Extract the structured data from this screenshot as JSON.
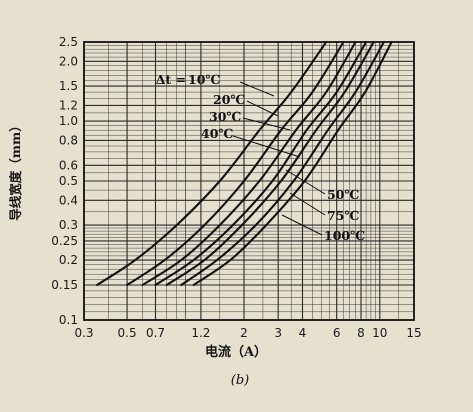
{
  "chart_data": {
    "type": "line",
    "xlabel": "电流（A）",
    "ylabel": "导线宽度（mm）",
    "subtitle": "(b)",
    "legend_prefix": "Δt =",
    "x_scale": "log",
    "y_scale": "log",
    "xlim": [
      0.3,
      15
    ],
    "ylim": [
      0.1,
      2.5
    ],
    "x_ticks": [
      "0.3",
      "0.5",
      "0.7",
      "1.2",
      "2",
      "3",
      "4",
      "6",
      "8",
      "10",
      "15"
    ],
    "x_tick_values": [
      0.3,
      0.5,
      0.7,
      1.2,
      2,
      3,
      4,
      6,
      8,
      10,
      15
    ],
    "y_ticks": [
      "2.5",
      "2.0",
      "1.5",
      "1.2",
      "1.0",
      "0.8",
      "0.6",
      "0.5",
      "0.4",
      "0.3",
      "0.25",
      "0.2",
      "0.15",
      "0.1"
    ],
    "y_tick_values": [
      2.5,
      2.0,
      1.5,
      1.2,
      1.0,
      0.8,
      0.6,
      0.5,
      0.4,
      0.3,
      0.25,
      0.2,
      0.15,
      0.1
    ],
    "grid": true,
    "series": [
      {
        "name": "10℃",
        "x": [
          0.35,
          0.55,
          0.9,
          1.5,
          2.4,
          3.5,
          5.3
        ],
        "y": [
          0.15,
          0.2,
          0.3,
          0.5,
          0.9,
          1.4,
          2.5
        ]
      },
      {
        "name": "20℃",
        "x": [
          0.5,
          0.78,
          1.25,
          2.0,
          3.1,
          4.5,
          6.5
        ],
        "y": [
          0.15,
          0.2,
          0.3,
          0.5,
          0.9,
          1.4,
          2.5
        ]
      },
      {
        "name": "30℃",
        "x": [
          0.6,
          0.95,
          1.5,
          2.4,
          3.7,
          5.3,
          7.5
        ],
        "y": [
          0.15,
          0.2,
          0.3,
          0.5,
          0.9,
          1.4,
          2.5
        ]
      },
      {
        "name": "40℃",
        "x": [
          0.7,
          1.1,
          1.75,
          2.8,
          4.2,
          6.0,
          8.5
        ],
        "y": [
          0.15,
          0.2,
          0.3,
          0.5,
          0.9,
          1.4,
          2.5
        ]
      },
      {
        "name": "50℃",
        "x": [
          0.8,
          1.25,
          1.95,
          3.1,
          4.7,
          6.6,
          9.3
        ],
        "y": [
          0.15,
          0.2,
          0.3,
          0.5,
          0.9,
          1.4,
          2.5
        ]
      },
      {
        "name": "75℃",
        "x": [
          0.95,
          1.45,
          2.3,
          3.6,
          5.4,
          7.5,
          10.5
        ],
        "y": [
          0.15,
          0.2,
          0.3,
          0.5,
          0.9,
          1.4,
          2.5
        ]
      },
      {
        "name": "100℃",
        "x": [
          1.1,
          1.7,
          2.6,
          4.1,
          6.1,
          8.4,
          11.5
        ],
        "y": [
          0.15,
          0.2,
          0.3,
          0.5,
          0.9,
          1.4,
          2.5
        ]
      }
    ],
    "colors": {
      "line": "#111111",
      "grid": "#2a2a2a",
      "paper": "#e6e0cf"
    }
  }
}
